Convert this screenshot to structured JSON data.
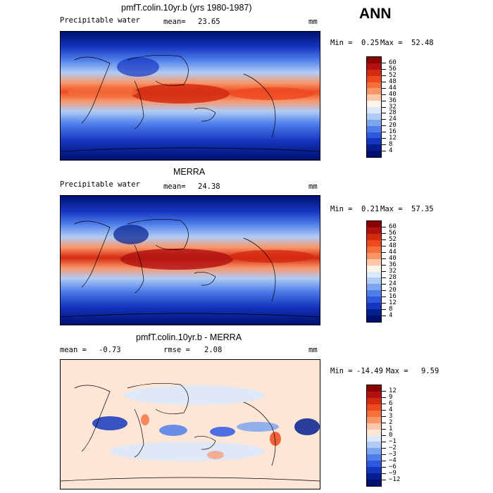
{
  "season": "ANN",
  "panels": [
    {
      "title": "pmfT.colin.10yr.b (yrs 1980-1987)",
      "left_label": "Precipitable water",
      "stat_label": "mean=",
      "stat_value": "23.65",
      "units": "mm",
      "min_label": "Min =",
      "min_value": "0.25",
      "max_label": "Max =",
      "max_value": "52.48",
      "colorbar": {
        "levels": [
          "60",
          "56",
          "52",
          "48",
          "44",
          "40",
          "36",
          "32",
          "28",
          "24",
          "20",
          "16",
          "12",
          "8",
          "4"
        ],
        "colors": [
          "#8b0000",
          "#b01010",
          "#d42a10",
          "#ee4a20",
          "#f5703a",
          "#f8966a",
          "#fcc6a8",
          "#fff4e8",
          "#dce8fb",
          "#b0ccf5",
          "#7ea6ee",
          "#4f7eea",
          "#2f58e0",
          "#1536c0",
          "#031e8f",
          "#001070"
        ]
      },
      "chart_data": {
        "type": "heatmap",
        "title": "pmfT.colin.10yr.b (yrs 1980-1987)",
        "variable": "Precipitable water",
        "units": "mm",
        "mean": 23.65,
        "min": 0.25,
        "max": 52.48,
        "contour_levels": [
          4,
          8,
          12,
          16,
          20,
          24,
          28,
          32,
          36,
          40,
          44,
          48,
          52,
          56,
          60
        ]
      }
    },
    {
      "title": "MERRA",
      "left_label": "Precipitable water",
      "stat_label": "mean=",
      "stat_value": "24.38",
      "units": "mm",
      "min_label": "Min =",
      "min_value": "0.21",
      "max_label": "Max =",
      "max_value": "57.35",
      "colorbar": {
        "levels": [
          "60",
          "56",
          "52",
          "48",
          "44",
          "40",
          "36",
          "32",
          "28",
          "24",
          "20",
          "16",
          "12",
          "8",
          "4"
        ],
        "colors": [
          "#8b0000",
          "#b01010",
          "#d42a10",
          "#ee4a20",
          "#f5703a",
          "#f8966a",
          "#fcc6a8",
          "#fff4e8",
          "#dce8fb",
          "#b0ccf5",
          "#7ea6ee",
          "#4f7eea",
          "#2f58e0",
          "#1536c0",
          "#031e8f",
          "#001070"
        ]
      },
      "chart_data": {
        "type": "heatmap",
        "title": "MERRA",
        "variable": "Precipitable water",
        "units": "mm",
        "mean": 24.38,
        "min": 0.21,
        "max": 57.35,
        "contour_levels": [
          4,
          8,
          12,
          16,
          20,
          24,
          28,
          32,
          36,
          40,
          44,
          48,
          52,
          56,
          60
        ]
      }
    },
    {
      "title": "pmfT.colin.10yr.b - MERRA",
      "left_label": "mean =",
      "left_value": "-0.73",
      "stat_label": "rmse =",
      "stat_value": "2.08",
      "units": "mm",
      "min_label": "Min =",
      "min_value": "-14.49",
      "max_label": "Max =",
      "max_value": "9.59",
      "colorbar": {
        "levels": [
          "12",
          "9",
          "6",
          "4",
          "3",
          "2",
          "1",
          "0",
          "−1",
          "−2",
          "−3",
          "−4",
          "−6",
          "−9",
          "−12"
        ],
        "colors": [
          "#8b0000",
          "#b01010",
          "#d42a10",
          "#ee4a20",
          "#f5703a",
          "#f8966a",
          "#fcc6a8",
          "#fde6d6",
          "#dce8fb",
          "#b0ccf5",
          "#7ea6ee",
          "#4f7eea",
          "#2f58e0",
          "#1536c0",
          "#031e8f",
          "#001070"
        ]
      },
      "chart_data": {
        "type": "heatmap",
        "title": "pmfT.colin.10yr.b - MERRA",
        "units": "mm",
        "mean": -0.73,
        "rmse": 2.08,
        "min": -14.49,
        "max": 9.59,
        "contour_levels": [
          -12,
          -9,
          -6,
          -4,
          -3,
          -2,
          -1,
          0,
          1,
          2,
          3,
          4,
          6,
          9,
          12
        ]
      }
    }
  ]
}
